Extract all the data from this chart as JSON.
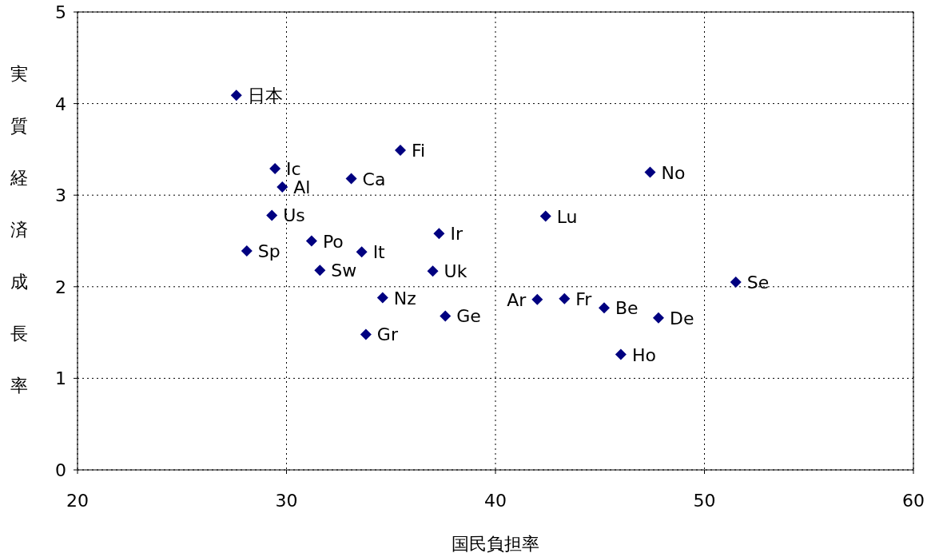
{
  "chart_data": {
    "type": "scatter",
    "xlabel": "国民負担率",
    "ylabel": "実質経済成長率",
    "xlim": [
      20,
      60
    ],
    "ylim": [
      0,
      5
    ],
    "xticks": [
      20,
      30,
      40,
      50,
      60
    ],
    "yticks": [
      0,
      1,
      2,
      3,
      4,
      5
    ],
    "grid": true,
    "marker": "diamond",
    "series": [
      {
        "color": "#000080",
        "x": [
          27.6,
          29.45,
          29.8,
          33.1,
          35.45,
          47.4,
          29.3,
          31.2,
          28.1,
          31.6,
          33.6,
          37.3,
          37.0,
          42.4,
          51.5,
          34.6,
          37.6,
          33.8,
          42.0,
          43.3,
          45.2,
          47.8,
          46.0
        ],
        "values": [
          4.09,
          3.29,
          3.09,
          3.18,
          3.49,
          3.25,
          2.78,
          2.5,
          2.39,
          2.18,
          2.38,
          2.58,
          2.17,
          2.77,
          2.05,
          1.88,
          1.68,
          1.48,
          1.86,
          1.87,
          1.77,
          1.66,
          1.26
        ]
      }
    ],
    "annotations": [
      {
        "text": "日本",
        "x": 27.6,
        "y": 4.09
      },
      {
        "text": "Ic",
        "x": 29.45,
        "y": 3.29
      },
      {
        "text": "Al",
        "x": 29.8,
        "y": 3.09
      },
      {
        "text": "Ca",
        "x": 33.1,
        "y": 3.18
      },
      {
        "text": "Fi",
        "x": 35.45,
        "y": 3.49
      },
      {
        "text": "No",
        "x": 47.4,
        "y": 3.25
      },
      {
        "text": "Us",
        "x": 29.3,
        "y": 2.78
      },
      {
        "text": "Po",
        "x": 31.2,
        "y": 2.5
      },
      {
        "text": "Sp",
        "x": 28.1,
        "y": 2.39
      },
      {
        "text": "Sw",
        "x": 31.6,
        "y": 2.18
      },
      {
        "text": "It",
        "x": 33.6,
        "y": 2.38
      },
      {
        "text": "Ir",
        "x": 37.3,
        "y": 2.58
      },
      {
        "text": "Uk",
        "x": 37.0,
        "y": 2.17
      },
      {
        "text": "Lu",
        "x": 42.4,
        "y": 2.77
      },
      {
        "text": "Se",
        "x": 51.5,
        "y": 2.05
      },
      {
        "text": "Nz",
        "x": 34.6,
        "y": 1.88
      },
      {
        "text": "Ge",
        "x": 37.6,
        "y": 1.68
      },
      {
        "text": "Gr",
        "x": 33.8,
        "y": 1.48
      },
      {
        "text": "Ar",
        "x": 42.0,
        "y": 1.86
      },
      {
        "text": "Fr",
        "x": 43.3,
        "y": 1.87
      },
      {
        "text": "Be",
        "x": 45.2,
        "y": 1.77
      },
      {
        "text": "De",
        "x": 47.8,
        "y": 1.66
      },
      {
        "text": "Ho",
        "x": 46.0,
        "y": 1.26
      }
    ]
  }
}
